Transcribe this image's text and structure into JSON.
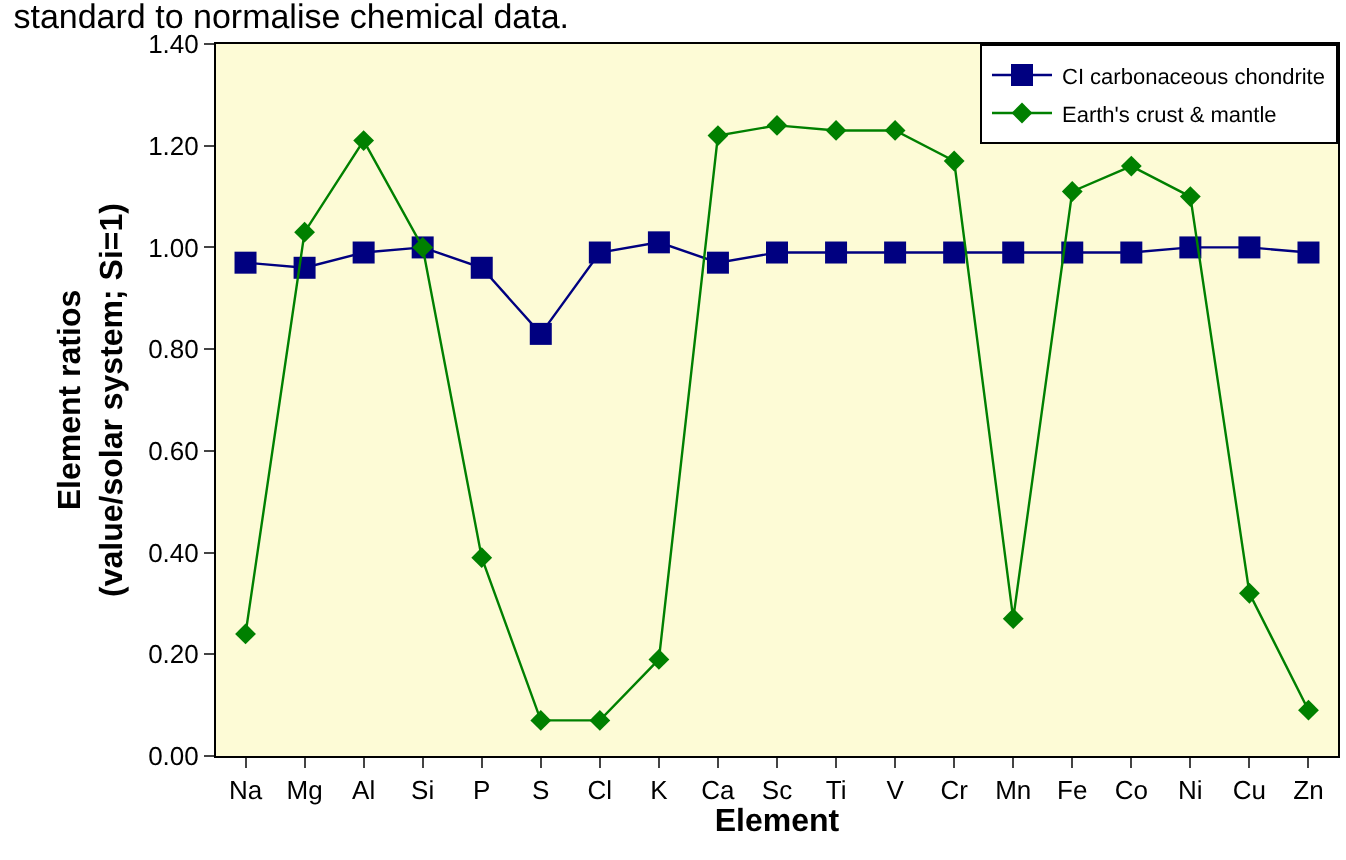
{
  "chart_data": {
    "type": "line",
    "title": "standard to normalise chemical data.",
    "xlabel": "Element",
    "ylabel": "Element ratios\n(value/solar system; Si=1)",
    "categories": [
      "Na",
      "Mg",
      "Al",
      "Si",
      "P",
      "S",
      "Cl",
      "K",
      "Ca",
      "Sc",
      "Ti",
      "V",
      "Cr",
      "Mn",
      "Fe",
      "Co",
      "Ni",
      "Cu",
      "Zn"
    ],
    "series": [
      {
        "name": "CI carbonaceous chondrite",
        "color": "#000080",
        "marker": "square",
        "values": [
          0.97,
          0.96,
          0.99,
          1.0,
          0.96,
          0.83,
          0.99,
          1.01,
          0.97,
          0.99,
          0.99,
          0.99,
          0.99,
          0.99,
          0.99,
          0.99,
          1.0,
          1.0,
          0.99
        ]
      },
      {
        "name": "Earth's crust & mantle",
        "color": "#008000",
        "marker": "diamond",
        "values": [
          0.24,
          1.03,
          1.21,
          1.0,
          0.39,
          0.07,
          0.07,
          0.19,
          1.22,
          1.24,
          1.23,
          1.23,
          1.17,
          0.27,
          1.11,
          1.16,
          1.1,
          0.32,
          0.09
        ]
      }
    ],
    "ylim": [
      0,
      1.4
    ],
    "yticks": [
      {
        "value": 0,
        "label": "0.00"
      },
      {
        "value": 0.2,
        "label": "0.20"
      },
      {
        "value": 0.4,
        "label": "0.40"
      },
      {
        "value": 0.6,
        "label": "0.60"
      },
      {
        "value": 0.8,
        "label": "0.80"
      },
      {
        "value": 1.0,
        "label": "1.00"
      },
      {
        "value": 1.2,
        "label": "1.20"
      },
      {
        "value": 1.4,
        "label": "1.40"
      }
    ],
    "grid": false,
    "legend": "top right",
    "line_style": "solid"
  }
}
